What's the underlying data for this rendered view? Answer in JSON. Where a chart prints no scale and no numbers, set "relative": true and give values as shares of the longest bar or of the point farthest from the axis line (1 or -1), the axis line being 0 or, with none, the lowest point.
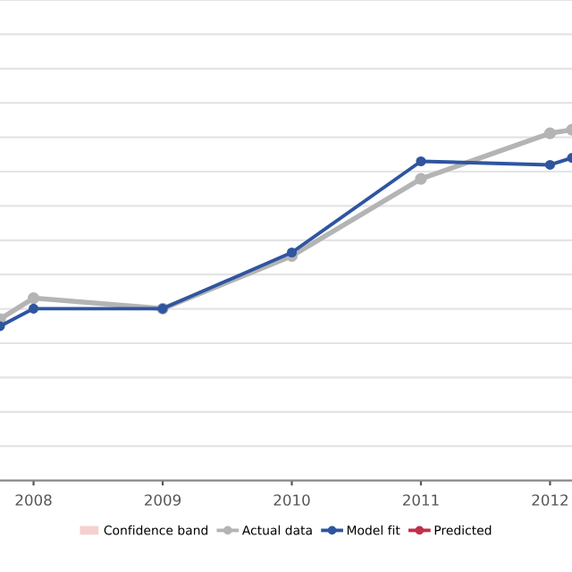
{
  "chart_data": {
    "type": "line",
    "relative": true,
    "x": [
      2007.74,
      2008,
      2009,
      2010,
      2011,
      2012,
      2012.17
    ],
    "xlim": [
      2007.74,
      2012.17
    ],
    "xticks": [
      2008,
      2009,
      2010,
      2011,
      2012
    ],
    "series": [
      {
        "name": "Confidence band",
        "type": "area",
        "color": "#f5d0d0",
        "values": [
          null,
          null,
          null,
          null,
          null,
          null,
          null
        ]
      },
      {
        "name": "Actual data",
        "color": "#b4b4b4",
        "values": [
          0.46,
          0.52,
          0.49,
          0.64,
          0.86,
          0.99,
          1.0
        ]
      },
      {
        "name": "Model fit",
        "color": "#2f55a0",
        "values": [
          0.44,
          0.49,
          0.49,
          0.65,
          0.91,
          0.9,
          0.92
        ]
      },
      {
        "name": "Predicted",
        "color": "#c0304a",
        "values": [
          null,
          null,
          null,
          null,
          null,
          null,
          null
        ]
      }
    ],
    "marker": "circle",
    "grid": "y",
    "legend": "bottom"
  }
}
